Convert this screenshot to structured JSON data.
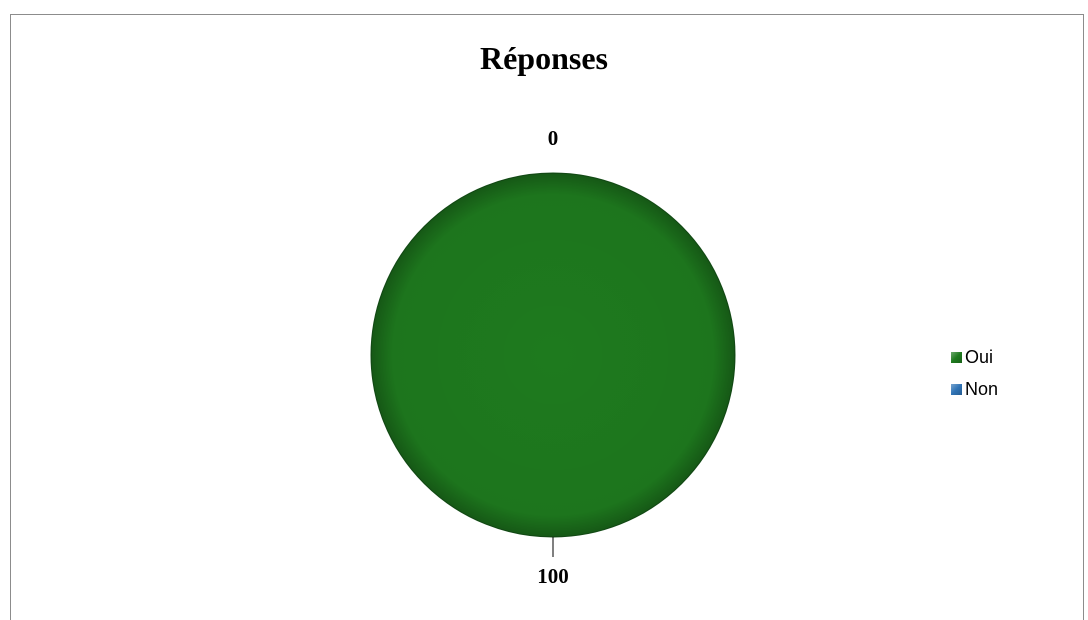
{
  "chart_data": {
    "type": "pie",
    "title": "Réponses",
    "categories": [
      "Oui",
      "Non"
    ],
    "values": [
      100,
      0
    ],
    "data_labels": [
      "100",
      "0"
    ],
    "colors": [
      "#1e7a1e",
      "#2f73b5"
    ],
    "legend": {
      "position": "right",
      "items": [
        "Oui",
        "Non"
      ]
    }
  }
}
